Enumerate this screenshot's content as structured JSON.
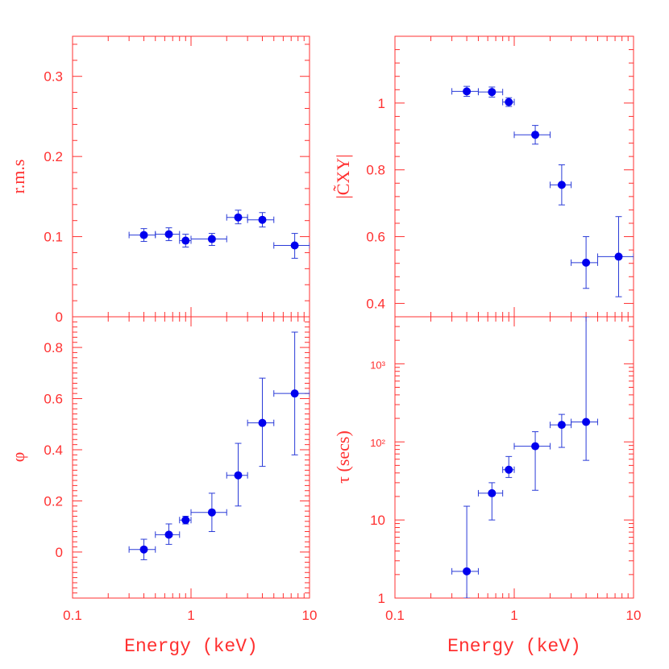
{
  "colors": {
    "axis": "#ff3030",
    "points": "#0000ee",
    "errorbars": "#2a3bd8"
  },
  "chart_data": [
    {
      "type": "scatter",
      "panel": "top-left",
      "ylabel": "r.m.s",
      "xlabel": "",
      "xscale": "log",
      "xlim": [
        0.1,
        10
      ],
      "ylim": [
        0,
        0.35
      ],
      "yticks": [
        {
          "v": 0,
          "label": "0"
        },
        {
          "v": 0.1,
          "label": "0.1"
        },
        {
          "v": 0.2,
          "label": "0.2"
        },
        {
          "v": 0.3,
          "label": "0.3"
        }
      ],
      "points": [
        {
          "x": 0.4,
          "xlo": 0.3,
          "xhi": 0.5,
          "y": 0.102,
          "ylo": 0.094,
          "yhi": 0.11
        },
        {
          "x": 0.65,
          "xlo": 0.5,
          "xhi": 0.8,
          "y": 0.103,
          "ylo": 0.095,
          "yhi": 0.111
        },
        {
          "x": 0.9,
          "xlo": 0.8,
          "xhi": 1.0,
          "y": 0.095,
          "ylo": 0.087,
          "yhi": 0.103
        },
        {
          "x": 1.5,
          "xlo": 1.0,
          "xhi": 2.0,
          "y": 0.097,
          "ylo": 0.089,
          "yhi": 0.104
        },
        {
          "x": 2.5,
          "xlo": 2.0,
          "xhi": 3.0,
          "y": 0.124,
          "ylo": 0.116,
          "yhi": 0.133
        },
        {
          "x": 4.0,
          "xlo": 3.0,
          "xhi": 5.0,
          "y": 0.121,
          "ylo": 0.112,
          "yhi": 0.13
        },
        {
          "x": 7.5,
          "xlo": 5.0,
          "xhi": 10.0,
          "y": 0.089,
          "ylo": 0.073,
          "yhi": 0.104
        }
      ]
    },
    {
      "type": "scatter",
      "panel": "top-right",
      "ylabel": "|C̃XY|",
      "xlabel": "",
      "xscale": "log",
      "xlim": [
        0.1,
        10
      ],
      "ylim": [
        0.36,
        1.2
      ],
      "yticks": [
        {
          "v": 0.4,
          "label": "0.4"
        },
        {
          "v": 0.6,
          "label": "0.6"
        },
        {
          "v": 0.8,
          "label": "0.8"
        },
        {
          "v": 1.0,
          "label": "1"
        }
      ],
      "points": [
        {
          "x": 0.4,
          "xlo": 0.3,
          "xhi": 0.5,
          "y": 1.035,
          "ylo": 1.02,
          "yhi": 1.05
        },
        {
          "x": 0.65,
          "xlo": 0.5,
          "xhi": 0.8,
          "y": 1.033,
          "ylo": 1.018,
          "yhi": 1.048
        },
        {
          "x": 0.9,
          "xlo": 0.8,
          "xhi": 1.0,
          "y": 1.003,
          "ylo": 0.99,
          "yhi": 1.016
        },
        {
          "x": 1.5,
          "xlo": 1.0,
          "xhi": 2.0,
          "y": 0.905,
          "ylo": 0.877,
          "yhi": 0.933
        },
        {
          "x": 2.5,
          "xlo": 2.0,
          "xhi": 3.0,
          "y": 0.755,
          "ylo": 0.695,
          "yhi": 0.815
        },
        {
          "x": 4.0,
          "xlo": 3.0,
          "xhi": 5.0,
          "y": 0.522,
          "ylo": 0.445,
          "yhi": 0.6
        },
        {
          "x": 7.5,
          "xlo": 5.0,
          "xhi": 10.0,
          "y": 0.54,
          "ylo": 0.42,
          "yhi": 0.66
        }
      ]
    },
    {
      "type": "scatter",
      "panel": "bottom-left",
      "ylabel": "φ",
      "xlabel": "Energy (keV)",
      "xscale": "log",
      "xlim": [
        0.1,
        10
      ],
      "ylim": [
        -0.18,
        0.92
      ],
      "yticks": [
        {
          "v": 0,
          "label": "0"
        },
        {
          "v": 0.2,
          "label": "0.2"
        },
        {
          "v": 0.4,
          "label": "0.4"
        },
        {
          "v": 0.6,
          "label": "0.6"
        },
        {
          "v": 0.8,
          "label": "0.8"
        }
      ],
      "xticks": [
        {
          "v": 0.1,
          "label": "0.1"
        },
        {
          "v": 1,
          "label": "1"
        },
        {
          "v": 10,
          "label": "10"
        }
      ],
      "points": [
        {
          "x": 0.4,
          "xlo": 0.3,
          "xhi": 0.5,
          "y": 0.01,
          "ylo": -0.03,
          "yhi": 0.05
        },
        {
          "x": 0.65,
          "xlo": 0.5,
          "xhi": 0.8,
          "y": 0.068,
          "ylo": 0.03,
          "yhi": 0.11
        },
        {
          "x": 0.9,
          "xlo": 0.8,
          "xhi": 1.0,
          "y": 0.125,
          "ylo": 0.11,
          "yhi": 0.14
        },
        {
          "x": 1.5,
          "xlo": 1.0,
          "xhi": 2.0,
          "y": 0.155,
          "ylo": 0.08,
          "yhi": 0.23
        },
        {
          "x": 2.5,
          "xlo": 2.0,
          "xhi": 3.0,
          "y": 0.3,
          "ylo": 0.18,
          "yhi": 0.425
        },
        {
          "x": 4.0,
          "xlo": 3.0,
          "xhi": 5.0,
          "y": 0.505,
          "ylo": 0.335,
          "yhi": 0.68
        },
        {
          "x": 7.5,
          "xlo": 5.0,
          "xhi": 10.0,
          "y": 0.62,
          "ylo": 0.38,
          "yhi": 0.86
        }
      ]
    },
    {
      "type": "scatter",
      "panel": "bottom-right",
      "ylabel": "τ (secs)",
      "xlabel": "Energy (keV)",
      "xscale": "log",
      "yscale": "log",
      "xlim": [
        0.1,
        10
      ],
      "ylim": [
        1,
        4000
      ],
      "yticks": [
        {
          "v": 1,
          "label": "1"
        },
        {
          "v": 10,
          "label": "10"
        },
        {
          "v": 100,
          "label": "10²"
        },
        {
          "v": 1000,
          "label": "10³"
        }
      ],
      "xticks": [
        {
          "v": 0.1,
          "label": "0.1"
        },
        {
          "v": 1,
          "label": "1"
        },
        {
          "v": 10,
          "label": "10"
        }
      ],
      "points": [
        {
          "x": 0.4,
          "xlo": 0.3,
          "xhi": 0.5,
          "y": 2.2,
          "ylo": 1,
          "yhi": 15
        },
        {
          "x": 0.65,
          "xlo": 0.5,
          "xhi": 0.8,
          "y": 22,
          "ylo": 10,
          "yhi": 30
        },
        {
          "x": 0.9,
          "xlo": 0.8,
          "xhi": 1.0,
          "y": 44,
          "ylo": 35,
          "yhi": 65
        },
        {
          "x": 1.5,
          "xlo": 1.0,
          "xhi": 2.0,
          "y": 88,
          "ylo": 24,
          "yhi": 135
        },
        {
          "x": 2.5,
          "xlo": 2.0,
          "xhi": 3.0,
          "y": 165,
          "ylo": 85,
          "yhi": 225
        },
        {
          "x": 4.0,
          "xlo": 3.0,
          "xhi": 5.0,
          "y": 180,
          "ylo": 58,
          "yhi": 4000
        }
      ]
    }
  ]
}
